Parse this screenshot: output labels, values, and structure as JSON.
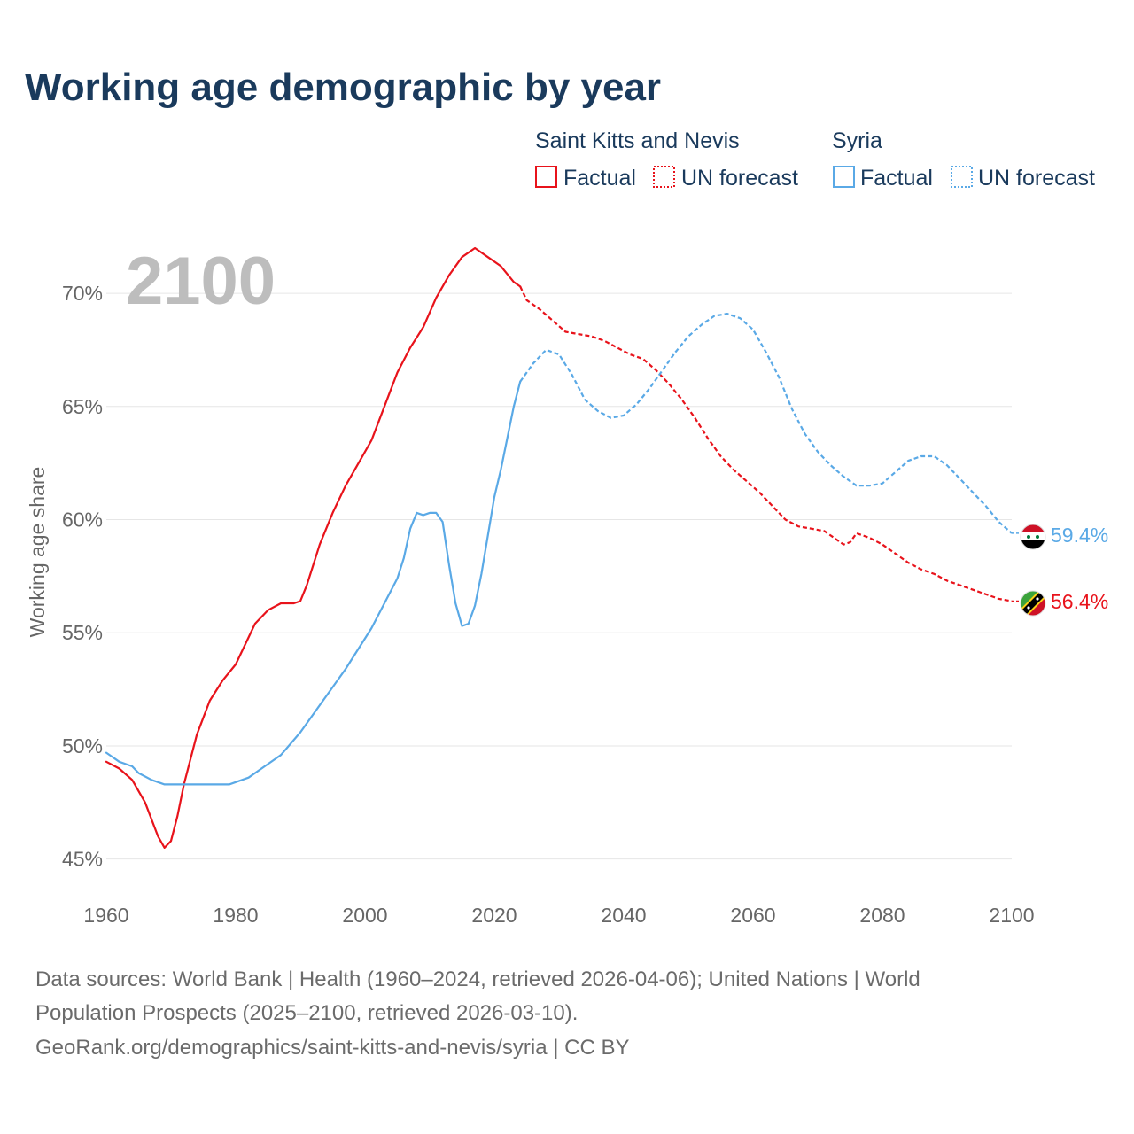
{
  "title": "Working age demographic by year",
  "year_watermark": "2100",
  "legend": {
    "groups": [
      {
        "name": "Saint Kitts and Nevis",
        "factual_label": "Factual",
        "forecast_label": "UN forecast",
        "color": "#e8131b"
      },
      {
        "name": "Syria",
        "factual_label": "Factual",
        "forecast_label": "UN forecast",
        "color": "#5aa9e6"
      }
    ]
  },
  "footer": {
    "line1": "Data sources: World Bank | Health (1960–2024, retrieved 2026-04-06); United Nations | World",
    "line2": "Population Prospects (2025–2100, retrieved 2026-03-10).",
    "line3": "GeoRank.org/demographics/saint-kitts-and-nevis/syria | CC BY"
  },
  "chart_data": {
    "type": "line",
    "title": "Working age demographic by year",
    "xlabel": "",
    "ylabel": "Working age share",
    "xlim": [
      1960,
      2100
    ],
    "ylim": [
      43.5,
      72
    ],
    "x_ticks": [
      1960,
      1980,
      2000,
      2020,
      2040,
      2060,
      2080,
      2100
    ],
    "x_tick_labels": [
      "1960",
      "1980",
      "2000",
      "2020",
      "2040",
      "2060",
      "2080",
      "2100"
    ],
    "y_ticks": [
      45,
      50,
      55,
      60,
      65,
      70
    ],
    "y_tick_labels": [
      "45%",
      "50%",
      "55%",
      "60%",
      "65%",
      "70%"
    ],
    "factual_end_year": 2024,
    "series": [
      {
        "name": "Saint Kitts and Nevis",
        "color": "#e8131b",
        "end_label": "56.4%",
        "points": [
          [
            1960,
            49.3
          ],
          [
            1962,
            49.0
          ],
          [
            1964,
            48.5
          ],
          [
            1966,
            47.5
          ],
          [
            1968,
            46.0
          ],
          [
            1969,
            45.5
          ],
          [
            1970,
            45.8
          ],
          [
            1971,
            46.9
          ],
          [
            1972,
            48.3
          ],
          [
            1974,
            50.5
          ],
          [
            1976,
            52.0
          ],
          [
            1978,
            52.9
          ],
          [
            1980,
            53.6
          ],
          [
            1982,
            54.8
          ],
          [
            1983,
            55.4
          ],
          [
            1985,
            56.0
          ],
          [
            1987,
            56.3
          ],
          [
            1989,
            56.3
          ],
          [
            1990,
            56.4
          ],
          [
            1991,
            57.1
          ],
          [
            1993,
            58.9
          ],
          [
            1995,
            60.3
          ],
          [
            1997,
            61.5
          ],
          [
            1999,
            62.5
          ],
          [
            2001,
            63.5
          ],
          [
            2003,
            65.0
          ],
          [
            2005,
            66.5
          ],
          [
            2007,
            67.6
          ],
          [
            2009,
            68.5
          ],
          [
            2011,
            69.8
          ],
          [
            2013,
            70.8
          ],
          [
            2015,
            71.6
          ],
          [
            2017,
            72.0
          ],
          [
            2019,
            71.6
          ],
          [
            2021,
            71.2
          ],
          [
            2023,
            70.5
          ],
          [
            2024,
            70.3
          ],
          [
            2025,
            69.7
          ],
          [
            2027,
            69.3
          ],
          [
            2029,
            68.8
          ],
          [
            2031,
            68.3
          ],
          [
            2033,
            68.2
          ],
          [
            2035,
            68.1
          ],
          [
            2037,
            67.9
          ],
          [
            2039,
            67.6
          ],
          [
            2041,
            67.3
          ],
          [
            2043,
            67.1
          ],
          [
            2045,
            66.6
          ],
          [
            2047,
            66.0
          ],
          [
            2049,
            65.3
          ],
          [
            2051,
            64.5
          ],
          [
            2053,
            63.6
          ],
          [
            2055,
            62.8
          ],
          [
            2057,
            62.2
          ],
          [
            2059,
            61.7
          ],
          [
            2061,
            61.2
          ],
          [
            2063,
            60.6
          ],
          [
            2065,
            60.0
          ],
          [
            2067,
            59.7
          ],
          [
            2069,
            59.6
          ],
          [
            2071,
            59.5
          ],
          [
            2073,
            59.1
          ],
          [
            2074,
            58.9
          ],
          [
            2075,
            59.0
          ],
          [
            2076,
            59.4
          ],
          [
            2078,
            59.2
          ],
          [
            2080,
            58.9
          ],
          [
            2082,
            58.5
          ],
          [
            2084,
            58.1
          ],
          [
            2086,
            57.8
          ],
          [
            2088,
            57.6
          ],
          [
            2090,
            57.3
          ],
          [
            2092,
            57.1
          ],
          [
            2094,
            56.9
          ],
          [
            2096,
            56.7
          ],
          [
            2098,
            56.5
          ],
          [
            2100,
            56.4
          ]
        ]
      },
      {
        "name": "Syria",
        "color": "#5aa9e6",
        "end_label": "59.4%",
        "points": [
          [
            1960,
            49.7
          ],
          [
            1962,
            49.3
          ],
          [
            1963,
            49.2
          ],
          [
            1964,
            49.1
          ],
          [
            1965,
            48.8
          ],
          [
            1967,
            48.5
          ],
          [
            1969,
            48.3
          ],
          [
            1971,
            48.3
          ],
          [
            1975,
            48.3
          ],
          [
            1979,
            48.3
          ],
          [
            1982,
            48.6
          ],
          [
            1985,
            49.2
          ],
          [
            1987,
            49.6
          ],
          [
            1990,
            50.6
          ],
          [
            1993,
            51.8
          ],
          [
            1995,
            52.6
          ],
          [
            1997,
            53.4
          ],
          [
            1999,
            54.3
          ],
          [
            2001,
            55.2
          ],
          [
            2003,
            56.3
          ],
          [
            2005,
            57.4
          ],
          [
            2006,
            58.3
          ],
          [
            2007,
            59.6
          ],
          [
            2008,
            60.3
          ],
          [
            2009,
            60.2
          ],
          [
            2010,
            60.3
          ],
          [
            2011,
            60.3
          ],
          [
            2012,
            59.9
          ],
          [
            2013,
            58.0
          ],
          [
            2014,
            56.3
          ],
          [
            2015,
            55.3
          ],
          [
            2016,
            55.4
          ],
          [
            2017,
            56.2
          ],
          [
            2018,
            57.6
          ],
          [
            2019,
            59.3
          ],
          [
            2020,
            61.0
          ],
          [
            2021,
            62.2
          ],
          [
            2022,
            63.6
          ],
          [
            2023,
            65.0
          ],
          [
            2024,
            66.1
          ],
          [
            2026,
            66.9
          ],
          [
            2028,
            67.5
          ],
          [
            2030,
            67.3
          ],
          [
            2032,
            66.4
          ],
          [
            2034,
            65.3
          ],
          [
            2036,
            64.8
          ],
          [
            2038,
            64.5
          ],
          [
            2040,
            64.6
          ],
          [
            2042,
            65.1
          ],
          [
            2044,
            65.8
          ],
          [
            2046,
            66.6
          ],
          [
            2048,
            67.4
          ],
          [
            2050,
            68.1
          ],
          [
            2052,
            68.6
          ],
          [
            2054,
            69.0
          ],
          [
            2056,
            69.1
          ],
          [
            2058,
            68.9
          ],
          [
            2060,
            68.4
          ],
          [
            2062,
            67.4
          ],
          [
            2064,
            66.3
          ],
          [
            2066,
            64.9
          ],
          [
            2068,
            63.8
          ],
          [
            2070,
            63.0
          ],
          [
            2072,
            62.4
          ],
          [
            2074,
            61.9
          ],
          [
            2076,
            61.5
          ],
          [
            2078,
            61.5
          ],
          [
            2080,
            61.6
          ],
          [
            2082,
            62.1
          ],
          [
            2084,
            62.6
          ],
          [
            2086,
            62.8
          ],
          [
            2088,
            62.8
          ],
          [
            2090,
            62.4
          ],
          [
            2092,
            61.8
          ],
          [
            2094,
            61.2
          ],
          [
            2096,
            60.6
          ],
          [
            2098,
            59.9
          ],
          [
            2100,
            59.4
          ]
        ]
      }
    ]
  }
}
